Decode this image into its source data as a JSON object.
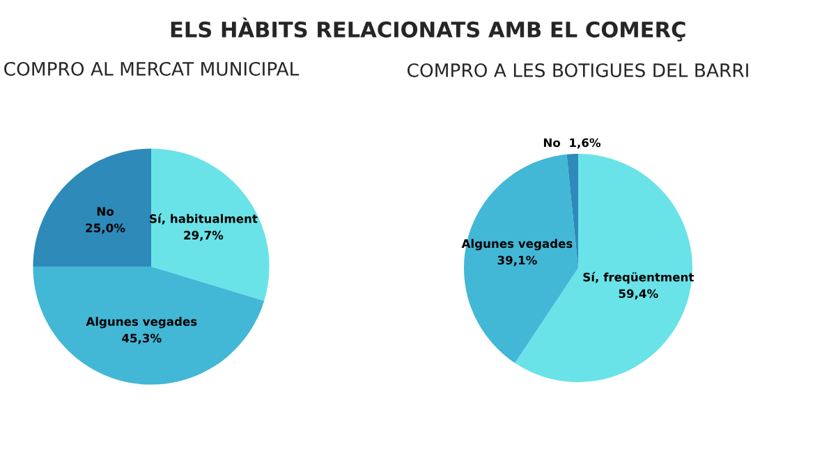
{
  "chart_data": [
    {
      "type": "pie",
      "title": "COMPRO AL MERCAT MUNICIPAL",
      "annotations": [
        "ELS HÀBITS RELACIONATS AMB EL COMERÇ"
      ],
      "categories": [
        "Sí, habitualment",
        "Algunes vegades",
        "No"
      ],
      "values": [
        29.7,
        45.3,
        25.0
      ],
      "colors": [
        "#6ae3e8",
        "#43b7d6",
        "#2e8ab9"
      ],
      "value_labels": [
        "29,7%",
        "45,3%",
        "25,0%"
      ],
      "legend": false
    },
    {
      "type": "pie",
      "title": "COMPRO A LES BOTIGUES DEL BARRI",
      "categories": [
        "Sí, freqüentment",
        "Algunes vegades",
        "No"
      ],
      "values": [
        59.4,
        39.1,
        1.6
      ],
      "colors": [
        "#6ae3e8",
        "#43b7d6",
        "#2e8ab9"
      ],
      "value_labels": [
        "59,4%",
        "39,1%",
        "1,6%"
      ],
      "legend": false
    }
  ]
}
